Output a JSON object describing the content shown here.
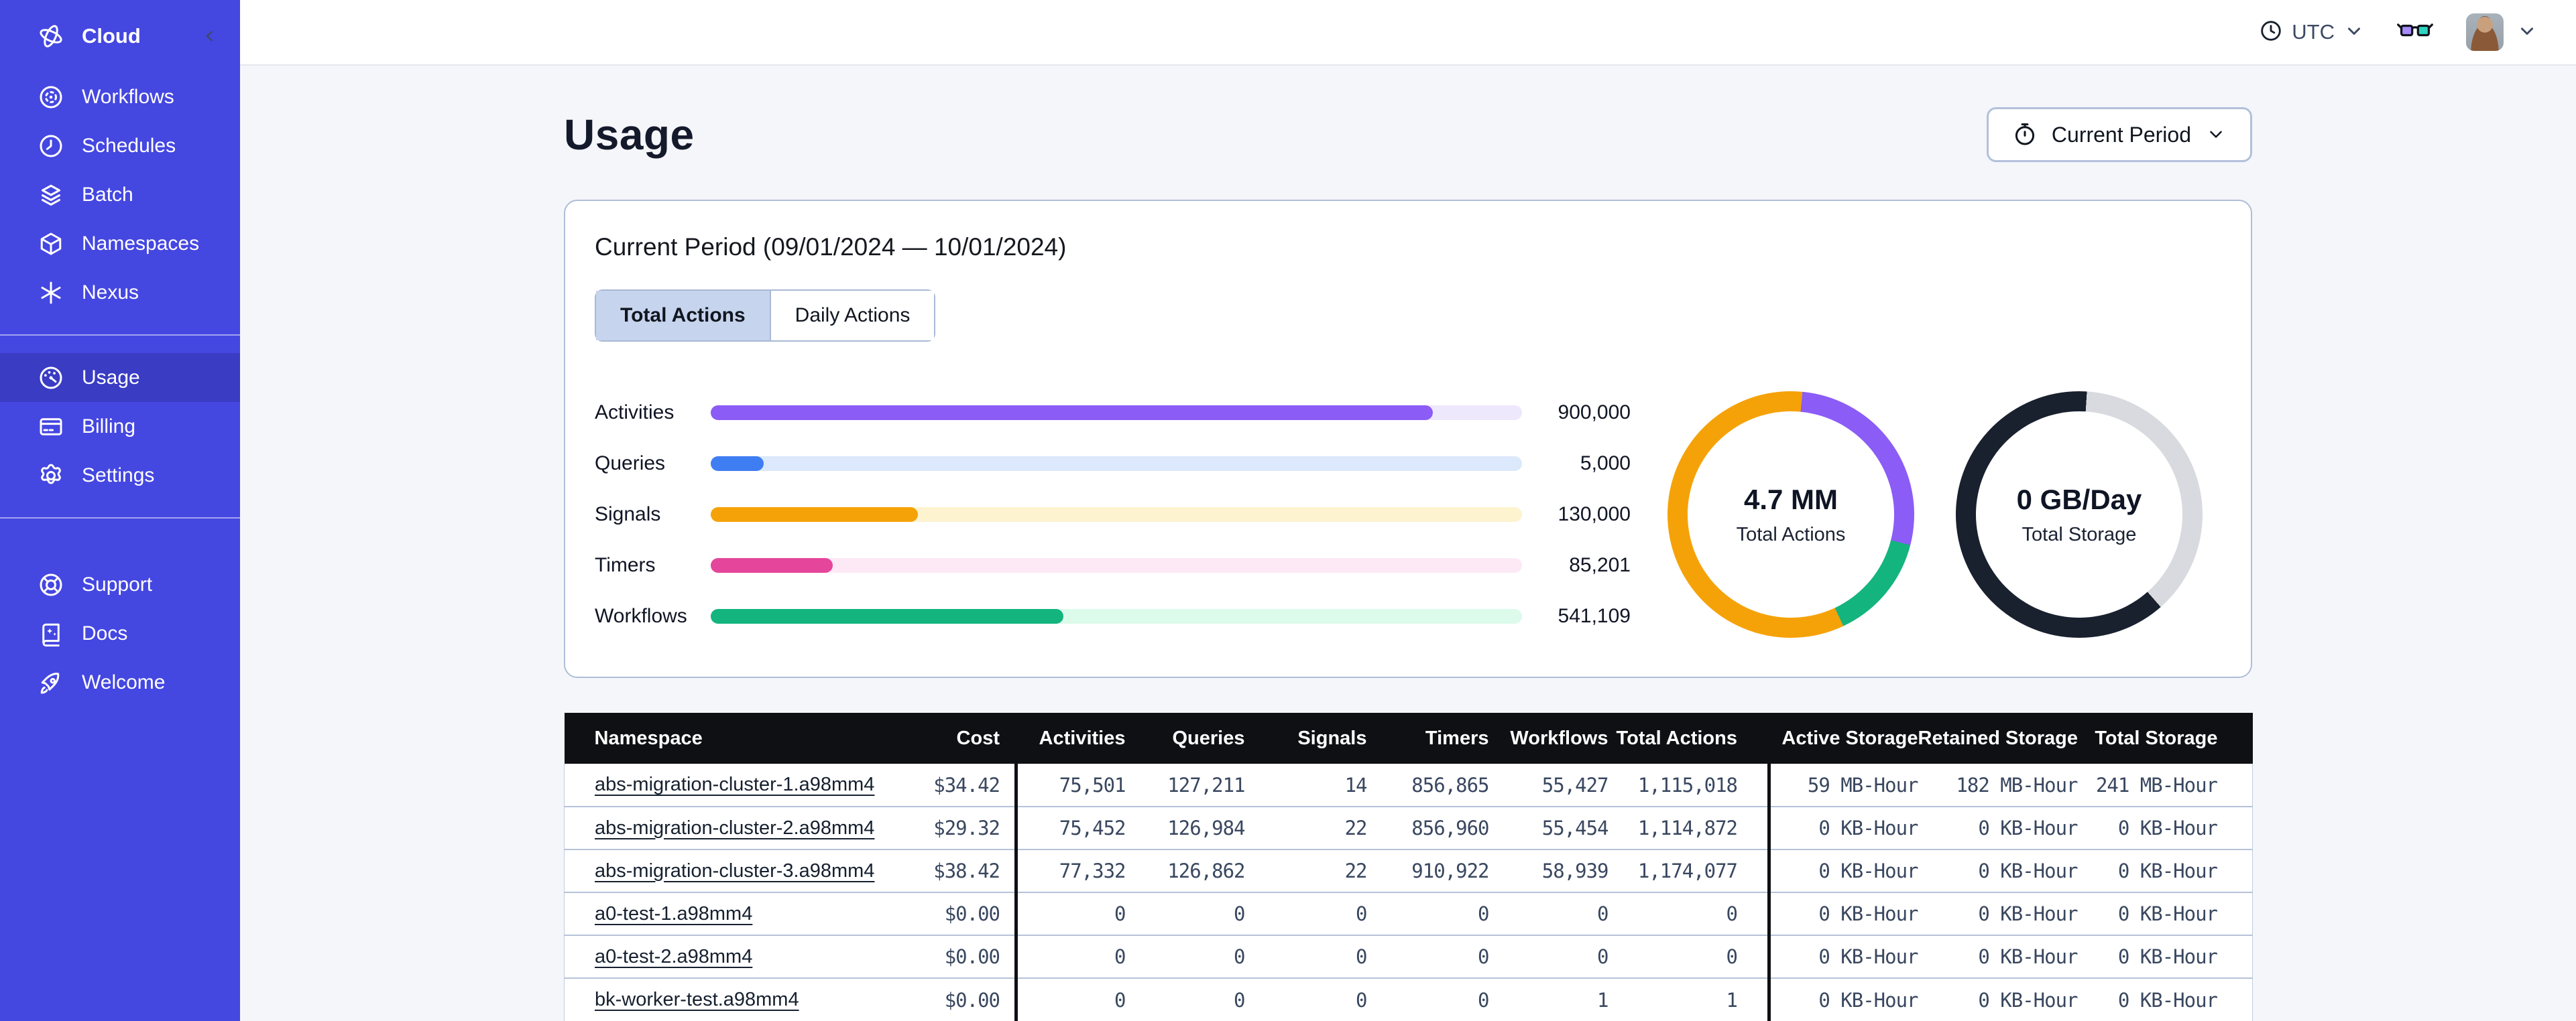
{
  "sidebar": {
    "brand": {
      "icon": "temporal-logo-icon",
      "label": "Cloud"
    },
    "nav_primary": [
      {
        "icon": "workflows-icon",
        "label": "Workflows"
      },
      {
        "icon": "schedules-icon",
        "label": "Schedules"
      },
      {
        "icon": "batch-icon",
        "label": "Batch"
      },
      {
        "icon": "namespaces-icon",
        "label": "Namespaces"
      },
      {
        "icon": "nexus-icon",
        "label": "Nexus"
      }
    ],
    "nav_account": [
      {
        "icon": "usage-icon",
        "label": "Usage",
        "active": true
      },
      {
        "icon": "billing-icon",
        "label": "Billing"
      },
      {
        "icon": "settings-icon",
        "label": "Settings"
      }
    ],
    "nav_footer": [
      {
        "icon": "support-icon",
        "label": "Support"
      },
      {
        "icon": "docs-icon",
        "label": "Docs"
      },
      {
        "icon": "welcome-icon",
        "label": "Welcome"
      }
    ],
    "colors": {
      "base": "#4547E1",
      "active_item": "#3A3CC4"
    }
  },
  "topbar": {
    "timezone_label": "UTC",
    "icons": [
      "clock-icon",
      "chevron-down-icon",
      "glasses-icon",
      "avatar",
      "chevron-down-icon"
    ]
  },
  "page": {
    "title": "Usage",
    "period_button_label": "Current Period",
    "period_button_icon": "stopwatch-icon"
  },
  "usage_card": {
    "title": "Current Period (09/01/2024 — 10/01/2024)",
    "tabs": [
      {
        "label": "Total Actions",
        "active": true
      },
      {
        "label": "Daily Actions",
        "active": false
      }
    ]
  },
  "chart_data": [
    {
      "type": "bar",
      "orientation": "horizontal",
      "categories": [
        "Activities",
        "Queries",
        "Signals",
        "Timers",
        "Workflows"
      ],
      "values": [
        900000,
        5000,
        130000,
        85201,
        541109
      ],
      "value_labels": [
        "900,000",
        "5,000",
        "130,000",
        "85,201",
        "541,109"
      ],
      "fill_pct": [
        89,
        6.5,
        25.5,
        15,
        43.5
      ],
      "fill_colors": [
        "#8B5CF6",
        "#3F7DF2",
        "#F5A209",
        "#E5459A",
        "#14B47E"
      ],
      "track_colors": [
        "#EDE8FC",
        "#DCE8FB",
        "#FDF3CF",
        "#FDE9F6",
        "#DCFBEB"
      ],
      "title": "",
      "xlabel": "",
      "ylabel": ""
    },
    {
      "type": "pie",
      "subtype": "donut",
      "center_value": "4.7 MM",
      "center_label": "Total Actions",
      "segments": [
        {
          "name": "orange-sliver",
          "color": "#F5A209",
          "start_pct": 0,
          "end_pct": 1.5
        },
        {
          "name": "activities",
          "color": "#8B5CF6",
          "start_pct": 1.5,
          "end_pct": 29
        },
        {
          "name": "workflows",
          "color": "#14B47E",
          "start_pct": 29,
          "end_pct": 43
        },
        {
          "name": "other-actions",
          "color": "#F5A209",
          "start_pct": 43,
          "end_pct": 100
        }
      ]
    },
    {
      "type": "pie",
      "subtype": "donut",
      "center_value": "0 GB/Day",
      "center_label": "Total Storage",
      "segments": [
        {
          "name": "dark-start",
          "color": "#19202E",
          "start_pct": 0,
          "end_pct": 1
        },
        {
          "name": "free",
          "color": "#D8DADF",
          "start_pct": 1,
          "end_pct": 38.5
        },
        {
          "name": "used",
          "color": "#19202E",
          "start_pct": 38.5,
          "end_pct": 100
        }
      ]
    }
  ],
  "table": {
    "columns": [
      {
        "key": "namespace",
        "label": "Namespace"
      },
      {
        "key": "cost",
        "label": "Cost"
      },
      {
        "key": "activities",
        "label": "Activities",
        "group_start": true
      },
      {
        "key": "queries",
        "label": "Queries"
      },
      {
        "key": "signals",
        "label": "Signals"
      },
      {
        "key": "timers",
        "label": "Timers"
      },
      {
        "key": "workflows",
        "label": "Workflows"
      },
      {
        "key": "total_actions",
        "label": "Total Actions"
      },
      {
        "key": "active_storage",
        "label": "Active Storage",
        "group_start": true
      },
      {
        "key": "retained_storage",
        "label": "Retained Storage"
      },
      {
        "key": "total_storage",
        "label": "Total Storage"
      }
    ],
    "rows": [
      [
        "abs-migration-cluster-1.a98mm4",
        "$34.42",
        "75,501",
        "127,211",
        "14",
        "856,865",
        "55,427",
        "1,115,018",
        "59 MB-Hour",
        "182 MB-Hour",
        "241 MB-Hour"
      ],
      [
        "abs-migration-cluster-2.a98mm4",
        "$29.32",
        "75,452",
        "126,984",
        "22",
        "856,960",
        "55,454",
        "1,114,872",
        "0 KB-Hour",
        "0 KB-Hour",
        "0 KB-Hour"
      ],
      [
        "abs-migration-cluster-3.a98mm4",
        "$38.42",
        "77,332",
        "126,862",
        "22",
        "910,922",
        "58,939",
        "1,174,077",
        "0 KB-Hour",
        "0 KB-Hour",
        "0 KB-Hour"
      ],
      [
        "a0-test-1.a98mm4",
        "$0.00",
        "0",
        "0",
        "0",
        "0",
        "0",
        "0",
        "0 KB-Hour",
        "0 KB-Hour",
        "0 KB-Hour"
      ],
      [
        "a0-test-2.a98mm4",
        "$0.00",
        "0",
        "0",
        "0",
        "0",
        "0",
        "0",
        "0 KB-Hour",
        "0 KB-Hour",
        "0 KB-Hour"
      ],
      [
        "bk-worker-test.a98mm4",
        "$0.00",
        "0",
        "0",
        "0",
        "0",
        "1",
        "1",
        "0 KB-Hour",
        "0 KB-Hour",
        "0 KB-Hour"
      ]
    ]
  }
}
